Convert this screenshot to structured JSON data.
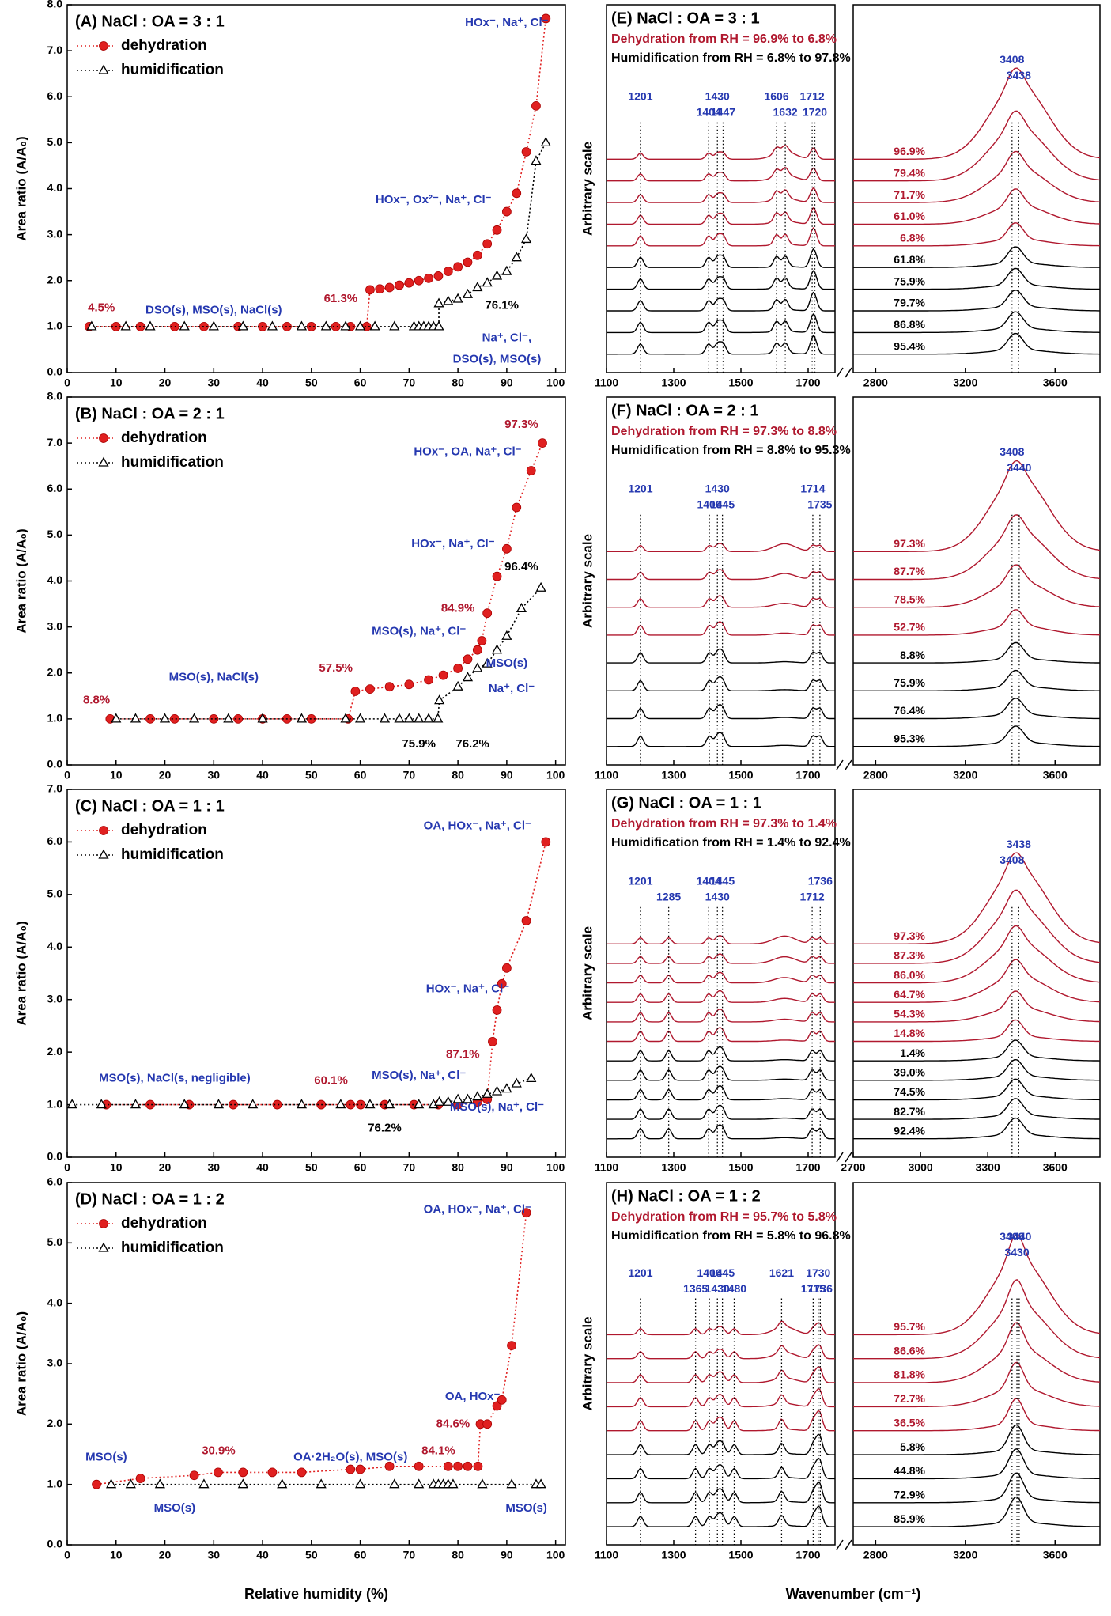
{
  "chart_data": [
    {
      "type": "scatter",
      "title": "(A) NaCl : OA = 3 : 1",
      "ylabel": "Area ratio (A/A₀)",
      "xlim": [
        0,
        102
      ],
      "xticks": [
        0,
        10,
        20,
        30,
        40,
        50,
        60,
        70,
        80,
        90,
        100
      ],
      "ylim": [
        0,
        8
      ],
      "yticks": [
        {
          "value": 0,
          "label": "0.0"
        },
        {
          "value": 1,
          "label": "1.0"
        },
        {
          "value": 2,
          "label": "2.0"
        },
        {
          "value": 3,
          "label": "3.0"
        },
        {
          "value": 4,
          "label": "4.0"
        },
        {
          "value": 5,
          "label": "5.0"
        },
        {
          "value": 6,
          "label": "6.0"
        },
        {
          "value": 7,
          "label": "7.0"
        },
        {
          "value": 8,
          "label": "8.0"
        }
      ],
      "series": [
        {
          "name": "dehydration",
          "color": "#e02020",
          "marker": "circle",
          "x": [
            4.5,
            10,
            15,
            22,
            28,
            35,
            40,
            45,
            50,
            55,
            58,
            61.3,
            62,
            64,
            66,
            68,
            70,
            72,
            74,
            76,
            78,
            80,
            82,
            84,
            86,
            88,
            90,
            92,
            94,
            96,
            98
          ],
          "values": [
            1,
            1,
            1,
            1,
            1,
            1,
            1,
            1,
            1,
            1,
            1,
            1,
            1.8,
            1.82,
            1.85,
            1.9,
            1.95,
            2,
            2.05,
            2.1,
            2.2,
            2.3,
            2.4,
            2.55,
            2.8,
            3.1,
            3.5,
            3.9,
            4.8,
            5.8,
            7.7
          ]
        },
        {
          "name": "humidification",
          "color": "#000000",
          "marker": "triangle",
          "x": [
            5,
            12,
            17,
            24,
            30,
            36,
            42,
            48,
            53,
            57,
            60,
            63,
            67,
            71,
            72,
            73,
            74,
            75,
            76.1,
            76.1,
            78,
            80,
            82,
            84,
            86,
            88,
            90,
            92,
            94,
            96,
            98
          ],
          "values": [
            1,
            1,
            1,
            1,
            1,
            1,
            1,
            1,
            1,
            1,
            1,
            1,
            1,
            1,
            1,
            1,
            1,
            1,
            1,
            1.5,
            1.55,
            1.6,
            1.7,
            1.85,
            1.95,
            2.1,
            2.2,
            2.5,
            2.9,
            4.6,
            5
          ]
        }
      ],
      "annotations": [
        {
          "text": "DSO(s), MSO(s), NaCl(s)",
          "color": "#2538b0"
        },
        {
          "text": "4.5%",
          "color": "#b0182e"
        },
        {
          "text": "61.3%",
          "color": "#b0182e"
        },
        {
          "text": "HOx⁻, Ox²⁻, Na⁺, Cl⁻",
          "color": "#2538b0"
        },
        {
          "text": "76.1%",
          "color": "#000000"
        },
        {
          "text": "Na⁺, Cl⁻,",
          "color": "#2538b0"
        },
        {
          "text": "DSO(s), MSO(s)",
          "color": "#2538b0"
        },
        {
          "text": "HOx⁻, Na⁺, Cl⁻",
          "color": "#2538b0"
        }
      ]
    },
    {
      "type": "scatter",
      "title": "(B) NaCl : OA = 2 : 1",
      "ylabel": "Area ratio (A/A₀)",
      "xlim": [
        0,
        102
      ],
      "xticks": [
        0,
        10,
        20,
        30,
        40,
        50,
        60,
        70,
        80,
        90,
        100
      ],
      "ylim": [
        0,
        8
      ],
      "yticks": [
        {
          "value": 0,
          "label": "0.0"
        },
        {
          "value": 1,
          "label": "1.0"
        },
        {
          "value": 2,
          "label": "2.0"
        },
        {
          "value": 3,
          "label": "3.0"
        },
        {
          "value": 4,
          "label": "4.0"
        },
        {
          "value": 5,
          "label": "5.0"
        },
        {
          "value": 6,
          "label": "6.0"
        },
        {
          "value": 7,
          "label": "7.0"
        },
        {
          "value": 8,
          "label": "8.0"
        }
      ],
      "series": [
        {
          "name": "dehydration",
          "color": "#e02020",
          "marker": "circle",
          "x": [
            8.8,
            17,
            22,
            30,
            35,
            40,
            45,
            50,
            57.5,
            59,
            62,
            66,
            70,
            74,
            77,
            80,
            82,
            84,
            84.9,
            86,
            88,
            90,
            92,
            95,
            97.3
          ],
          "values": [
            1,
            1,
            1,
            1,
            1,
            1,
            1,
            1,
            1,
            1.6,
            1.65,
            1.7,
            1.75,
            1.85,
            1.95,
            2.1,
            2.3,
            2.5,
            2.7,
            3.3,
            4.1,
            4.7,
            5.6,
            6.4,
            7
          ]
        },
        {
          "name": "humidification",
          "color": "#000000",
          "marker": "triangle",
          "x": [
            10,
            14,
            20,
            26,
            33,
            40,
            48,
            57,
            60,
            65,
            68,
            70,
            72,
            74,
            75.9,
            76.2,
            80,
            82,
            84,
            86,
            88,
            90,
            93,
            97
          ],
          "values": [
            1,
            1,
            1,
            1,
            1,
            1,
            1,
            1,
            1,
            1,
            1,
            1,
            1,
            1,
            1,
            1.4,
            1.7,
            1.9,
            2.1,
            2.2,
            2.5,
            2.8,
            3.4,
            3.85
          ]
        }
      ],
      "annotations": [
        {
          "text": "8.8%",
          "color": "#b0182e"
        },
        {
          "text": "MSO(s), NaCl(s)",
          "color": "#2538b0"
        },
        {
          "text": "57.5%",
          "color": "#b0182e"
        },
        {
          "text": "75.9%",
          "color": "#000000"
        },
        {
          "text": "76.2%",
          "color": "#000000"
        },
        {
          "text": "MSO(s)",
          "color": "#2538b0"
        },
        {
          "text": "Na⁺, Cl⁻",
          "color": "#2538b0"
        },
        {
          "text": "MSO(s), Na⁺, Cl⁻",
          "color": "#2538b0"
        },
        {
          "text": "84.9%",
          "color": "#b0182e"
        },
        {
          "text": "HOx⁻, Na⁺, Cl⁻",
          "color": "#2538b0"
        },
        {
          "text": "96.4%",
          "color": "#000000"
        },
        {
          "text": "HOx⁻, OA, Na⁺, Cl⁻",
          "color": "#2538b0"
        },
        {
          "text": "97.3%",
          "color": "#b0182e"
        }
      ]
    },
    {
      "type": "scatter",
      "title": "(C) NaCl : OA = 1 : 1",
      "ylabel": "Area ratio (A/A₀)",
      "xlim": [
        0,
        102
      ],
      "xticks": [
        0,
        10,
        20,
        30,
        40,
        50,
        60,
        70,
        80,
        90,
        100
      ],
      "ylim": [
        0,
        7
      ],
      "yticks": [
        {
          "value": 0,
          "label": "0.0"
        },
        {
          "value": 1,
          "label": "1.0"
        },
        {
          "value": 2,
          "label": "2.0"
        },
        {
          "value": 3,
          "label": "3.0"
        },
        {
          "value": 4,
          "label": "4.0"
        },
        {
          "value": 5,
          "label": "5.0"
        },
        {
          "value": 6,
          "label": "6.0"
        },
        {
          "value": 7,
          "label": "7.0"
        }
      ],
      "series": [
        {
          "name": "dehydration",
          "color": "#e02020",
          "marker": "circle",
          "x": [
            8,
            17,
            25,
            34,
            43,
            52,
            58,
            60.1,
            65,
            71,
            76,
            80,
            84,
            86,
            87.1,
            88,
            89,
            90,
            94,
            98
          ],
          "values": [
            1,
            1,
            1,
            1,
            1,
            1,
            1,
            1,
            1,
            1,
            1,
            1,
            1.05,
            1.1,
            2.2,
            2.8,
            3.3,
            3.6,
            4.5,
            6
          ]
        },
        {
          "name": "humidification",
          "color": "#000000",
          "marker": "triangle",
          "x": [
            1,
            7,
            14,
            24,
            31,
            38,
            48,
            56,
            62,
            66,
            72,
            75,
            76.2,
            78,
            80,
            82,
            84,
            86,
            88,
            90,
            92,
            95
          ],
          "values": [
            1,
            1,
            1,
            1,
            1,
            1,
            1,
            1,
            1,
            1,
            1,
            1,
            1.05,
            1.05,
            1.1,
            1.1,
            1.15,
            1.2,
            1.25,
            1.3,
            1.4,
            1.5
          ]
        }
      ],
      "annotations": [
        {
          "text": "MSO(s), NaCl(s, negligible)",
          "color": "#2538b0"
        },
        {
          "text": "60.1%",
          "color": "#b0182e"
        },
        {
          "text": "MSO(s), Na⁺, Cl⁻",
          "color": "#2538b0"
        },
        {
          "text": "87.1%",
          "color": "#b0182e"
        },
        {
          "text": "76.2%",
          "color": "#000000"
        },
        {
          "text": "MSO(s), Na⁺, Cl⁻",
          "color": "#2538b0"
        },
        {
          "text": "HOx⁻, Na⁺, Cl⁻",
          "color": "#2538b0"
        },
        {
          "text": "OA, HOx⁻, Na⁺, Cl⁻",
          "color": "#2538b0"
        }
      ]
    },
    {
      "type": "scatter",
      "title": "(D) NaCl : OA = 1 : 2",
      "ylabel": "Area ratio (A/A₀)",
      "xlabel": "Relative humidity (%)",
      "xlim": [
        0,
        102
      ],
      "xticks": [
        0,
        10,
        20,
        30,
        40,
        50,
        60,
        70,
        80,
        90,
        100
      ],
      "ylim": [
        0,
        6
      ],
      "yticks": [
        {
          "value": 0,
          "label": "0.0"
        },
        {
          "value": 1,
          "label": "1.0"
        },
        {
          "value": 2,
          "label": "2.0"
        },
        {
          "value": 3,
          "label": "3.0"
        },
        {
          "value": 4,
          "label": "4.0"
        },
        {
          "value": 5,
          "label": "5.0"
        },
        {
          "value": 6,
          "label": "6.0"
        }
      ],
      "series": [
        {
          "name": "dehydration",
          "color": "#e02020",
          "marker": "circle",
          "x": [
            6,
            15,
            26,
            30.9,
            36,
            42,
            48,
            58,
            60,
            66,
            72,
            78,
            80,
            82,
            84.1,
            84.6,
            86,
            88,
            89,
            91,
            94
          ],
          "values": [
            1,
            1.1,
            1.15,
            1.2,
            1.2,
            1.2,
            1.2,
            1.25,
            1.25,
            1.3,
            1.3,
            1.3,
            1.3,
            1.3,
            1.3,
            2,
            2,
            2.3,
            2.4,
            3.3,
            5.5
          ]
        },
        {
          "name": "humidification",
          "color": "#000000",
          "marker": "triangle",
          "x": [
            9,
            13,
            19,
            28,
            36,
            44,
            52,
            60,
            67,
            72,
            75,
            76,
            77,
            78,
            79,
            85,
            91,
            96,
            97
          ],
          "values": [
            1,
            1,
            1,
            1,
            1,
            1,
            1,
            1,
            1,
            1,
            1,
            1,
            1,
            1,
            1,
            1,
            1,
            1,
            1
          ]
        }
      ],
      "annotations": [
        {
          "text": "MSO(s)",
          "color": "#2538b0"
        },
        {
          "text": "MSO(s)",
          "color": "#2538b0"
        },
        {
          "text": "30.9%",
          "color": "#b0182e"
        },
        {
          "text": "OA·2H₂O(s), MSO(s)",
          "color": "#2538b0"
        },
        {
          "text": "84.1%",
          "color": "#b0182e"
        },
        {
          "text": "84.6%",
          "color": "#b0182e"
        },
        {
          "text": "OA, HOx⁻",
          "color": "#2538b0"
        },
        {
          "text": "OA, HOx⁻, Na⁺, Cl⁻",
          "color": "#2538b0"
        },
        {
          "text": "MSO(s)",
          "color": "#2538b0"
        }
      ]
    },
    {
      "type": "spectra",
      "title": "(E) NaCl : OA = 3 : 1",
      "ylabel": "Arbitrary scale",
      "dehydration_label": "Dehydration from RH = 96.9% to 6.8%",
      "humidification_label": "Humidification from RH = 6.8% to 97.8%",
      "dehydration_color": "#b0182e",
      "humidification_color": "#000000",
      "peak_color": "#2538b0",
      "segments": [
        {
          "xlim": [
            1100,
            1780
          ],
          "xticks": [
            1100,
            1300,
            1500,
            1700
          ]
        },
        {
          "xlim": [
            2700,
            3800
          ],
          "xticks": [
            2800,
            3200,
            3600
          ]
        }
      ],
      "peaks": [
        1201,
        1404,
        1430,
        1447,
        1606,
        1632,
        1712,
        1720,
        3408,
        3438
      ],
      "traces_dehydration": [
        "96.9%",
        "79.4%",
        "71.7%",
        "61.0%",
        "6.8%"
      ],
      "traces_humidification": [
        "61.8%",
        "75.9%",
        "79.7%",
        "86.8%",
        "95.4%"
      ]
    },
    {
      "type": "spectra",
      "title": "(F) NaCl : OA = 2 : 1",
      "ylabel": "Arbitrary scale",
      "dehydration_label": "Dehydration from RH = 97.3% to 8.8%",
      "humidification_label": "Humidification from RH = 8.8% to 95.3%",
      "dehydration_color": "#b0182e",
      "humidification_color": "#000000",
      "peak_color": "#2538b0",
      "segments": [
        {
          "xlim": [
            1100,
            1780
          ],
          "xticks": [
            1100,
            1300,
            1500,
            1700
          ]
        },
        {
          "xlim": [
            2700,
            3800
          ],
          "xticks": [
            2800,
            3200,
            3600
          ]
        }
      ],
      "peaks": [
        1201,
        1406,
        1430,
        1445,
        1714,
        1735,
        3408,
        3440
      ],
      "traces_dehydration": [
        "97.3%",
        "87.7%",
        "78.5%",
        "52.7%"
      ],
      "traces_humidification": [
        "8.8%",
        "75.9%",
        "76.4%",
        "95.3%"
      ]
    },
    {
      "type": "spectra",
      "title": "(G) NaCl : OA = 1 : 1",
      "ylabel": "Arbitrary scale",
      "dehydration_label": "Dehydration from RH = 97.3% to 1.4%",
      "humidification_label": "Humidification from RH = 1.4% to 92.4%",
      "dehydration_color": "#b0182e",
      "humidification_color": "#000000",
      "peak_color": "#2538b0",
      "segments": [
        {
          "xlim": [
            1100,
            1780
          ],
          "xticks": [
            1100,
            1300,
            1500,
            1700
          ]
        },
        {
          "xlim": [
            2700,
            3800
          ],
          "xticks": [
            2700,
            3000,
            3300,
            3600
          ]
        }
      ],
      "peaks": [
        1201,
        1285,
        1404,
        1430,
        1445,
        1712,
        1736,
        3408,
        3438
      ],
      "traces_dehydration": [
        "97.3%",
        "87.3%",
        "86.0%",
        "64.7%",
        "54.3%",
        "14.8%"
      ],
      "traces_humidification": [
        "1.4%",
        "39.0%",
        "74.5%",
        "82.7%",
        "92.4%"
      ]
    },
    {
      "type": "spectra",
      "title": "(H) NaCl : OA = 1 : 2",
      "ylabel": "Arbitrary scale",
      "xlabel": "Wavenumber (cm⁻¹)",
      "dehydration_label": "Dehydration from RH = 95.7% to 5.8%",
      "humidification_label": "Humidification from RH = 5.8% to 96.8%",
      "dehydration_color": "#b0182e",
      "humidification_color": "#000000",
      "peak_color": "#2538b0",
      "segments": [
        {
          "xlim": [
            1100,
            1780
          ],
          "xticks": [
            1100,
            1300,
            1500,
            1700
          ]
        },
        {
          "xlim": [
            2700,
            3800
          ],
          "xticks": [
            2800,
            3200,
            3600
          ]
        }
      ],
      "peaks": [
        1201,
        1365,
        1406,
        1430,
        1445,
        1480,
        1621,
        1715,
        1730,
        1736,
        3408,
        3430,
        3440
      ],
      "traces_dehydration": [
        "95.7%",
        "86.6%",
        "81.8%",
        "72.7%",
        "36.5%"
      ],
      "traces_humidification": [
        "5.8%",
        "44.8%",
        "72.9%",
        "85.9%"
      ]
    }
  ]
}
